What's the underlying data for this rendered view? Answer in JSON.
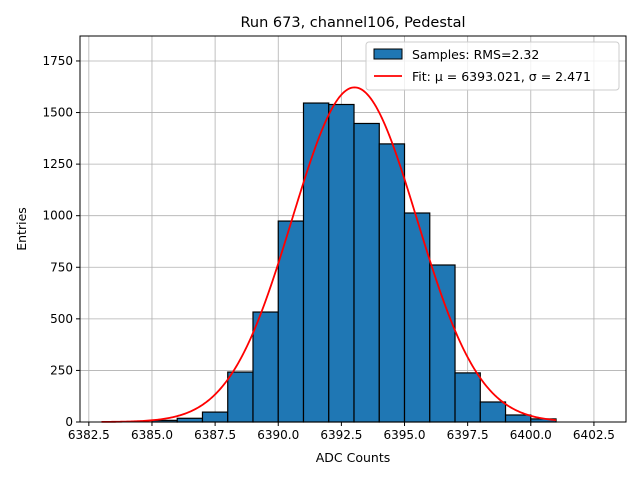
{
  "chart_data": {
    "type": "bar",
    "title": "Run 673, channel106, Pedestal",
    "xlabel": "ADC Counts",
    "ylabel": "Entries",
    "xlim": [
      6382.15,
      6403.77
    ],
    "ylim": [
      0,
      1871
    ],
    "grid": true,
    "legend_placement": "top-right",
    "xticks": [
      6382.5,
      6385.0,
      6387.5,
      6390.0,
      6392.5,
      6395.0,
      6397.5,
      6400.0,
      6402.5
    ],
    "xtick_labels": [
      "6382.5",
      "6385.0",
      "6387.5",
      "6390.0",
      "6392.5",
      "6395.0",
      "6397.5",
      "6400.0",
      "6402.5"
    ],
    "yticks": [
      0,
      250,
      500,
      750,
      1000,
      1250,
      1500,
      1750
    ],
    "ytick_labels": [
      "0",
      "250",
      "500",
      "750",
      "1000",
      "1250",
      "1500",
      "1750"
    ],
    "bin_edges": [
      6385,
      6386,
      6387,
      6388,
      6389,
      6390,
      6391,
      6392,
      6393,
      6394,
      6395,
      6396,
      6397,
      6398,
      6399,
      6400,
      6401
    ],
    "values": [
      8,
      18,
      48,
      242,
      533,
      974,
      1546,
      1539,
      1447,
      1348,
      1013,
      761,
      238,
      97,
      34,
      15
    ],
    "bar_color": "#1f77b4",
    "fit": {
      "mu": 6393.021,
      "sigma": 2.471,
      "amplitude": 1622,
      "x_range": [
        6383.0,
        6401.0
      ],
      "color": "#ff0000"
    },
    "legend": [
      {
        "label": "Samples: RMS=2.32",
        "kind": "patch"
      },
      {
        "label": "Fit: μ = 6393.021, σ = 2.471",
        "kind": "line"
      }
    ]
  }
}
